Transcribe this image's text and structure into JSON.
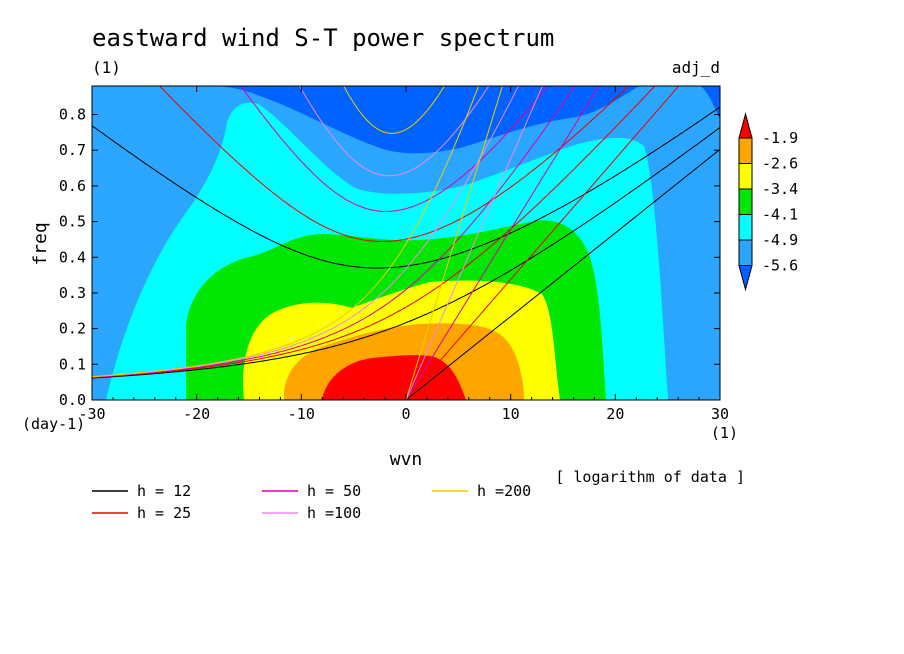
{
  "chart_data": {
    "type": "heatmap",
    "title": "eastward wind S-T power spectrum",
    "subtitle_left": "(1)",
    "subtitle_right": "adj_d",
    "xlabel": "wvn",
    "ylabel": "freq",
    "x_unit": "(1)",
    "y_unit": "(day-1)",
    "xlim": [
      -30,
      30
    ],
    "ylim": [
      0,
      0.88
    ],
    "x_ticks": [
      -30,
      -20,
      -10,
      0,
      10,
      20,
      30
    ],
    "x_tick_labels": [
      "-30",
      "-20",
      "-10",
      "0",
      "10",
      "20",
      "30"
    ],
    "y_ticks": [
      0,
      0.1,
      0.2,
      0.3,
      0.4,
      0.5,
      0.6,
      0.7,
      0.8
    ],
    "y_tick_labels": [
      "0.0",
      "0.1",
      "0.2",
      "0.3",
      "0.4",
      "0.5",
      "0.6",
      "0.7",
      "0.8"
    ],
    "note": "[ logarithm of data ]",
    "colorbar": {
      "levels": [
        -5.6,
        -4.9,
        -4.1,
        -3.4,
        -2.6,
        -1.9
      ],
      "level_labels": [
        "-5.6",
        "-4.9",
        "-4.1",
        "-3.4",
        "-2.6",
        "-1.9"
      ],
      "colors": [
        "#0062ff",
        "#2aa6ff",
        "#00ffff",
        "#00e600",
        "#ffff00",
        "#ffa500",
        "#ff0000"
      ]
    },
    "dispersion_legend": [
      {
        "label": "h = 12",
        "color": "#000000",
        "h": 12
      },
      {
        "label": "h = 25",
        "color": "#ee0000",
        "h": 25
      },
      {
        "label": "h = 50",
        "color": "#dd00aa",
        "h": 50
      },
      {
        "label": "h =100",
        "color": "#ee88ee",
        "h": 100
      },
      {
        "label": "h =200",
        "color": "#eecc00",
        "h": 200
      }
    ]
  }
}
